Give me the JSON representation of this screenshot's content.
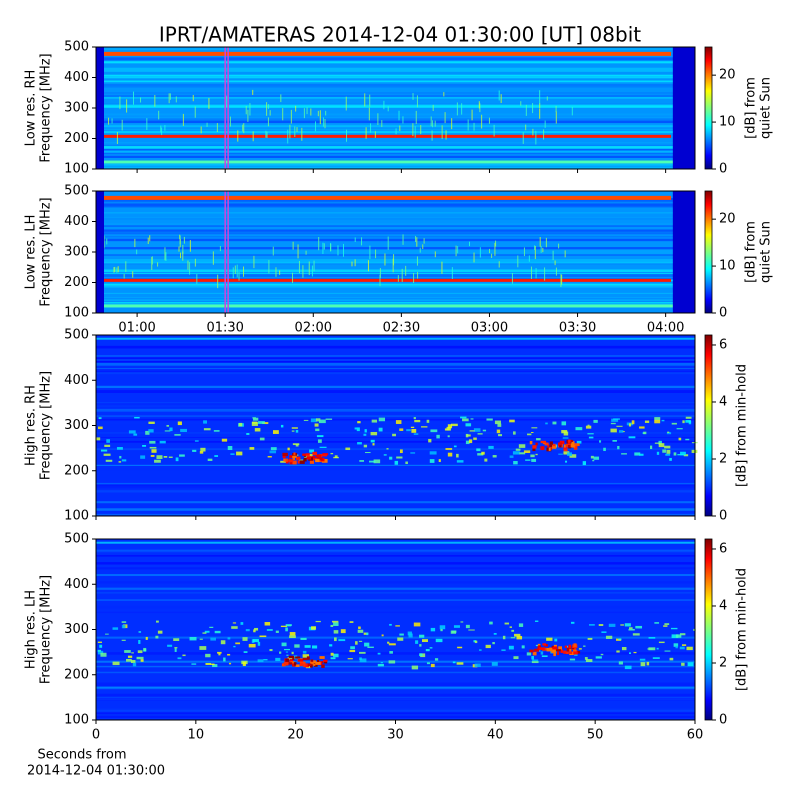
{
  "chart_data": [
    {
      "type": "heatmap",
      "title": "IPRT/AMATERAS 2014-12-04 01:30:00 [UT]   08bit",
      "ylabel": [
        "Low res. RH",
        "Frequency [MHz]"
      ],
      "xlim": [
        46,
        250
      ],
      "xticks": [
        60,
        90,
        120,
        150,
        180,
        210,
        240
      ],
      "show_xtick_labels": false,
      "ylim": [
        100,
        500
      ],
      "yticks": [
        100,
        200,
        300,
        400,
        500
      ],
      "markers": [
        90,
        91
      ],
      "marker_color": "#cc44dd",
      "colorbar": {
        "label": [
          "[dB] from",
          "quiet Sun"
        ],
        "lim": [
          0,
          26
        ],
        "ticks": [
          0,
          10,
          20
        ]
      }
    },
    {
      "type": "heatmap",
      "ylabel": [
        "Low res. LH",
        "Frequency [MHz]"
      ],
      "xlim": [
        46,
        250
      ],
      "xticks": [
        {
          "value": 60,
          "label": "01:00"
        },
        {
          "value": 90,
          "label": "01:30"
        },
        {
          "value": 120,
          "label": "02:00"
        },
        {
          "value": 150,
          "label": "02:30"
        },
        {
          "value": 180,
          "label": "03:00"
        },
        {
          "value": 210,
          "label": "03:30"
        },
        {
          "value": 240,
          "label": "04:00"
        }
      ],
      "show_xtick_labels": true,
      "ylim": [
        100,
        500
      ],
      "yticks": [
        100,
        200,
        300,
        400,
        500
      ],
      "markers": [
        90,
        91
      ],
      "marker_color": "#cc44dd",
      "colorbar": {
        "label": [
          "[dB] from",
          "quiet Sun"
        ],
        "lim": [
          0,
          26
        ],
        "ticks": [
          0,
          10,
          20
        ]
      }
    },
    {
      "type": "heatmap",
      "ylabel": [
        "High res. RH",
        "Frequency [MHz]"
      ],
      "xlim": [
        0,
        60
      ],
      "xticks": [
        0,
        10,
        20,
        30,
        40,
        50,
        60
      ],
      "show_xtick_labels": false,
      "ylim": [
        100,
        500
      ],
      "yticks": [
        100,
        200,
        300,
        400,
        500
      ],
      "colorbar": {
        "label": [
          "[dB] from min-hold"
        ],
        "lim": [
          0,
          6.35
        ],
        "ticks": [
          0,
          2,
          4,
          6
        ]
      }
    },
    {
      "type": "heatmap",
      "ylabel": [
        "High res. LH",
        "Frequency [MHz]"
      ],
      "xlabel": [
        "Seconds from",
        "2014-12-04 01:30:00"
      ],
      "xlim": [
        0,
        60
      ],
      "xticks": [
        0,
        10,
        20,
        30,
        40,
        50,
        60
      ],
      "show_xtick_labels": true,
      "ylim": [
        100,
        500
      ],
      "yticks": [
        100,
        200,
        300,
        400,
        500
      ],
      "colorbar": {
        "label": [
          "[dB] from min-hold"
        ],
        "lim": [
          0,
          6.35
        ],
        "ticks": [
          0,
          2,
          4,
          6
        ]
      }
    }
  ]
}
